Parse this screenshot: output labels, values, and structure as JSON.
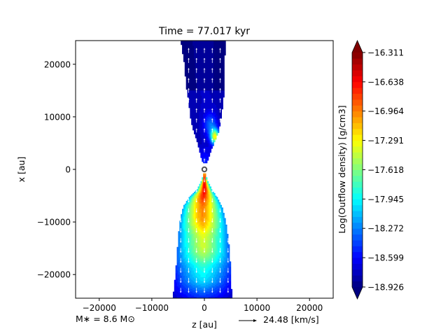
{
  "chart_data": {
    "type": "heatmap",
    "title": "Time = 77.017 kyr",
    "xlabel": "z [au]",
    "ylabel": "x [au]",
    "xlim": [
      -24500,
      24500
    ],
    "ylim": [
      -24500,
      24500
    ],
    "xticks": [
      -20000,
      -10000,
      0,
      10000,
      20000
    ],
    "yticks": [
      -20000,
      -10000,
      0,
      10000,
      20000
    ],
    "xtick_labels": [
      "−20000",
      "−10000",
      "0",
      "10000",
      "20000"
    ],
    "ytick_labels": [
      "−20000",
      "−10000",
      "0",
      "10000",
      "20000"
    ],
    "colorbar": {
      "label": "Log(Outflow density) [g/cm3]",
      "vmin": -18.926,
      "vmax": -16.311,
      "colormap": "jet",
      "extend": "both",
      "ticks": [
        -18.926,
        -18.599,
        -18.272,
        -17.945,
        -17.618,
        -17.291,
        -16.964,
        -16.638,
        -16.311
      ],
      "tick_labels": [
        "−18.926",
        "−18.599",
        "−18.272",
        "−17.945",
        "−17.618",
        "−17.291",
        "−16.964",
        "−16.638",
        "−16.311"
      ]
    },
    "star_mass_label": "M∗ = 8.6 M⊙",
    "velocity_key_label": "24.48 [km/s]",
    "grid": false,
    "upper_lobe": {
      "x_range": [
        700,
        24500
      ],
      "profile": [
        [
          24500,
          -4500,
          4000
        ],
        [
          20000,
          -3800,
          3800
        ],
        [
          16000,
          -3500,
          3700
        ],
        [
          13000,
          -3000,
          3600
        ],
        [
          11000,
          -2800,
          3300
        ],
        [
          9000,
          -2500,
          3000
        ],
        [
          7000,
          -2000,
          2600
        ],
        [
          5000,
          -1300,
          1800
        ],
        [
          3000,
          -800,
          1000
        ],
        [
          1200,
          -300,
          400
        ]
      ]
    },
    "lower_lobe": {
      "x_range": [
        -24500,
        -800
      ],
      "profile": [
        [
          -800,
          -250,
          250
        ],
        [
          -2000,
          -500,
          500
        ],
        [
          -4000,
          -1500,
          1500
        ],
        [
          -5500,
          -3000,
          2500
        ],
        [
          -7000,
          -4000,
          3300
        ],
        [
          -9000,
          -4500,
          3800
        ],
        [
          -11000,
          -4800,
          4200
        ],
        [
          -13000,
          -5000,
          4500
        ],
        [
          -16000,
          -5200,
          4800
        ],
        [
          -20000,
          -5500,
          5000
        ],
        [
          -24500,
          -6000,
          5200
        ]
      ]
    }
  }
}
